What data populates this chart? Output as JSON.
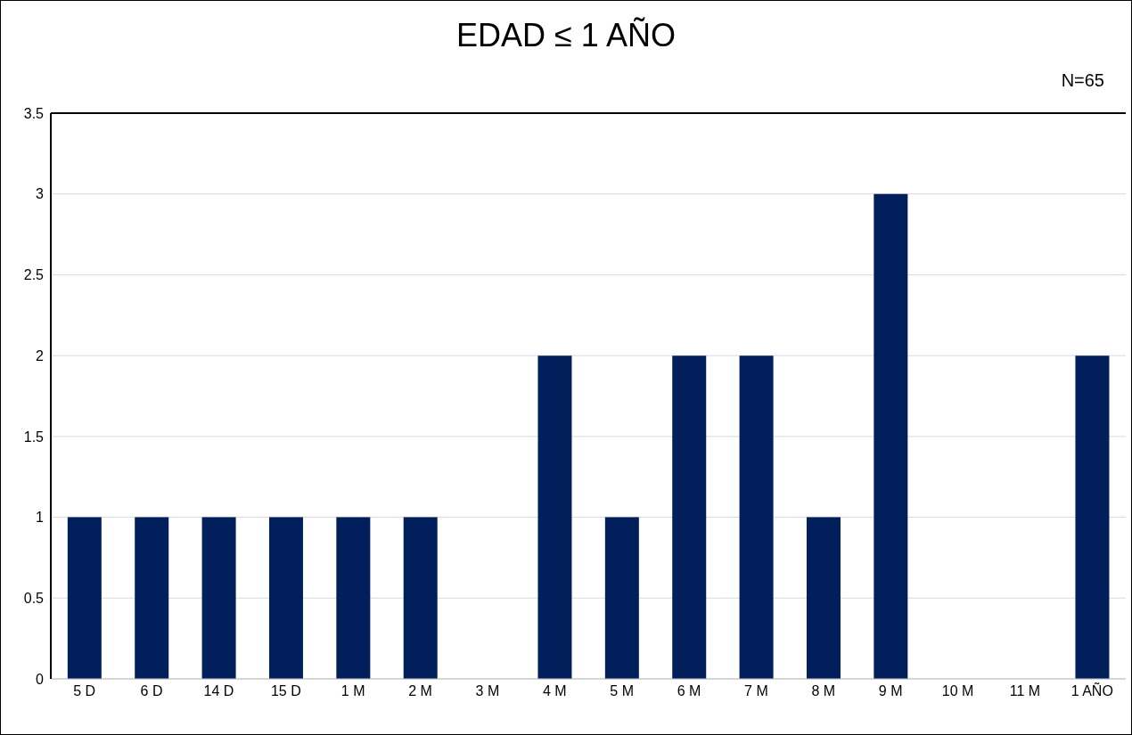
{
  "chart_data": {
    "type": "bar",
    "title": "EDAD ≤ 1 AÑO",
    "annotations": [
      "N=65"
    ],
    "categories": [
      "5 D",
      "6 D",
      "14 D",
      "15 D",
      "1 M",
      "2 M",
      "3 M",
      "4 M",
      "5 M",
      "6 M",
      "7 M",
      "8 M",
      "9 M",
      "10 M",
      "11 M",
      "1 AÑO"
    ],
    "values": [
      1,
      1,
      1,
      1,
      1,
      1,
      0,
      2,
      1,
      2,
      2,
      1,
      3,
      0,
      0,
      2
    ],
    "color": "#001f5b",
    "ylim": [
      0,
      3.5
    ],
    "yticks": [
      0,
      0.5,
      1,
      1.5,
      2,
      2.5,
      3,
      3.5
    ],
    "grid": "y"
  }
}
